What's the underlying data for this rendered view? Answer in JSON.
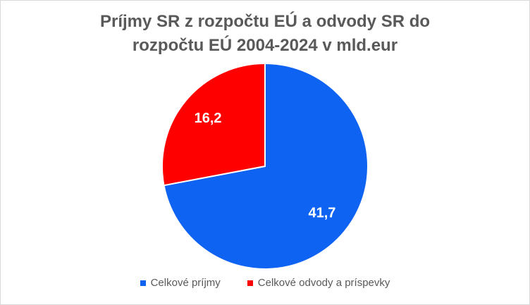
{
  "chart_data": {
    "type": "pie",
    "title_lines": [
      "Príjmy SR z rozpočtu EÚ a odvody SR do",
      "rozpočtu EÚ 2004-2024  v mld.eur"
    ],
    "categories": [
      "Celkové príjmy",
      "Celkové odvody a príspevky"
    ],
    "values": [
      41.7,
      16.2
    ],
    "value_labels": [
      "41,7",
      "16,2"
    ],
    "colors": [
      "#0f63f3",
      "#ff0000"
    ],
    "legend_position": "bottom"
  }
}
